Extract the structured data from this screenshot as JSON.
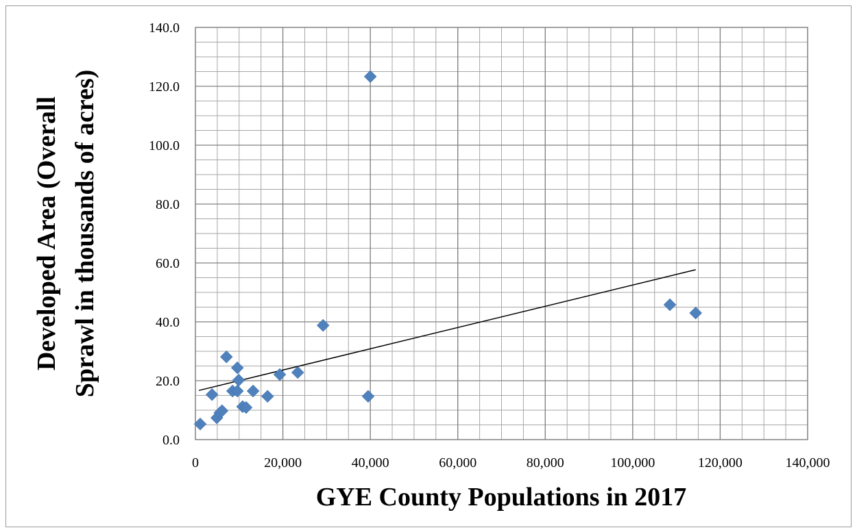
{
  "chart_data": {
    "type": "scatter",
    "x_label": "GYE County Populations in 2017",
    "y_label": [
      "Developed Area (Overall",
      "Sprawl in thousands of acres)"
    ],
    "color": "#4f81bd",
    "x": [
      1100,
      3800,
      4900,
      5600,
      6100,
      7100,
      8500,
      9600,
      9600,
      9900,
      10800,
      11600,
      13200,
      16500,
      19300,
      23400,
      29200,
      39500,
      40000,
      108500,
      114400
    ],
    "y": [
      5.3,
      15.3,
      7.4,
      9.1,
      9.8,
      28.1,
      16.5,
      16.5,
      24.4,
      20.2,
      11.2,
      10.9,
      16.5,
      14.7,
      22.1,
      22.8,
      38.8,
      14.7,
      123.3,
      45.8,
      43.0
    ],
    "trendline": {
      "x": [
        800,
        114400
      ],
      "y": [
        16.7,
        57.7
      ],
      "color": "#000000"
    },
    "xlim": [
      0,
      140000
    ],
    "ylim": [
      0,
      140
    ],
    "xticks": [
      0,
      {
        "value": 20000,
        "label": "20,000"
      },
      {
        "value": 40000,
        "label": "40,000"
      },
      {
        "value": 60000,
        "label": "60,000"
      },
      {
        "value": 80000,
        "label": "80,000"
      },
      {
        "value": 100000,
        "label": "100,000"
      },
      {
        "value": 120000,
        "label": "120,000"
      },
      {
        "value": 140000,
        "label": "140,000"
      }
    ],
    "yticks": [
      {
        "value": 0,
        "label": "0.0"
      },
      {
        "value": 20,
        "label": "20.0"
      },
      {
        "value": 40,
        "label": "40.0"
      },
      {
        "value": 60,
        "label": "60.0"
      },
      {
        "value": 80,
        "label": "80.0"
      },
      {
        "value": 100,
        "label": "100.0"
      },
      {
        "value": 120,
        "label": "120.0"
      },
      {
        "value": 140,
        "label": "140.0"
      }
    ],
    "minor_grid": {
      "x": 5000,
      "y": 5
    },
    "grid": true
  }
}
